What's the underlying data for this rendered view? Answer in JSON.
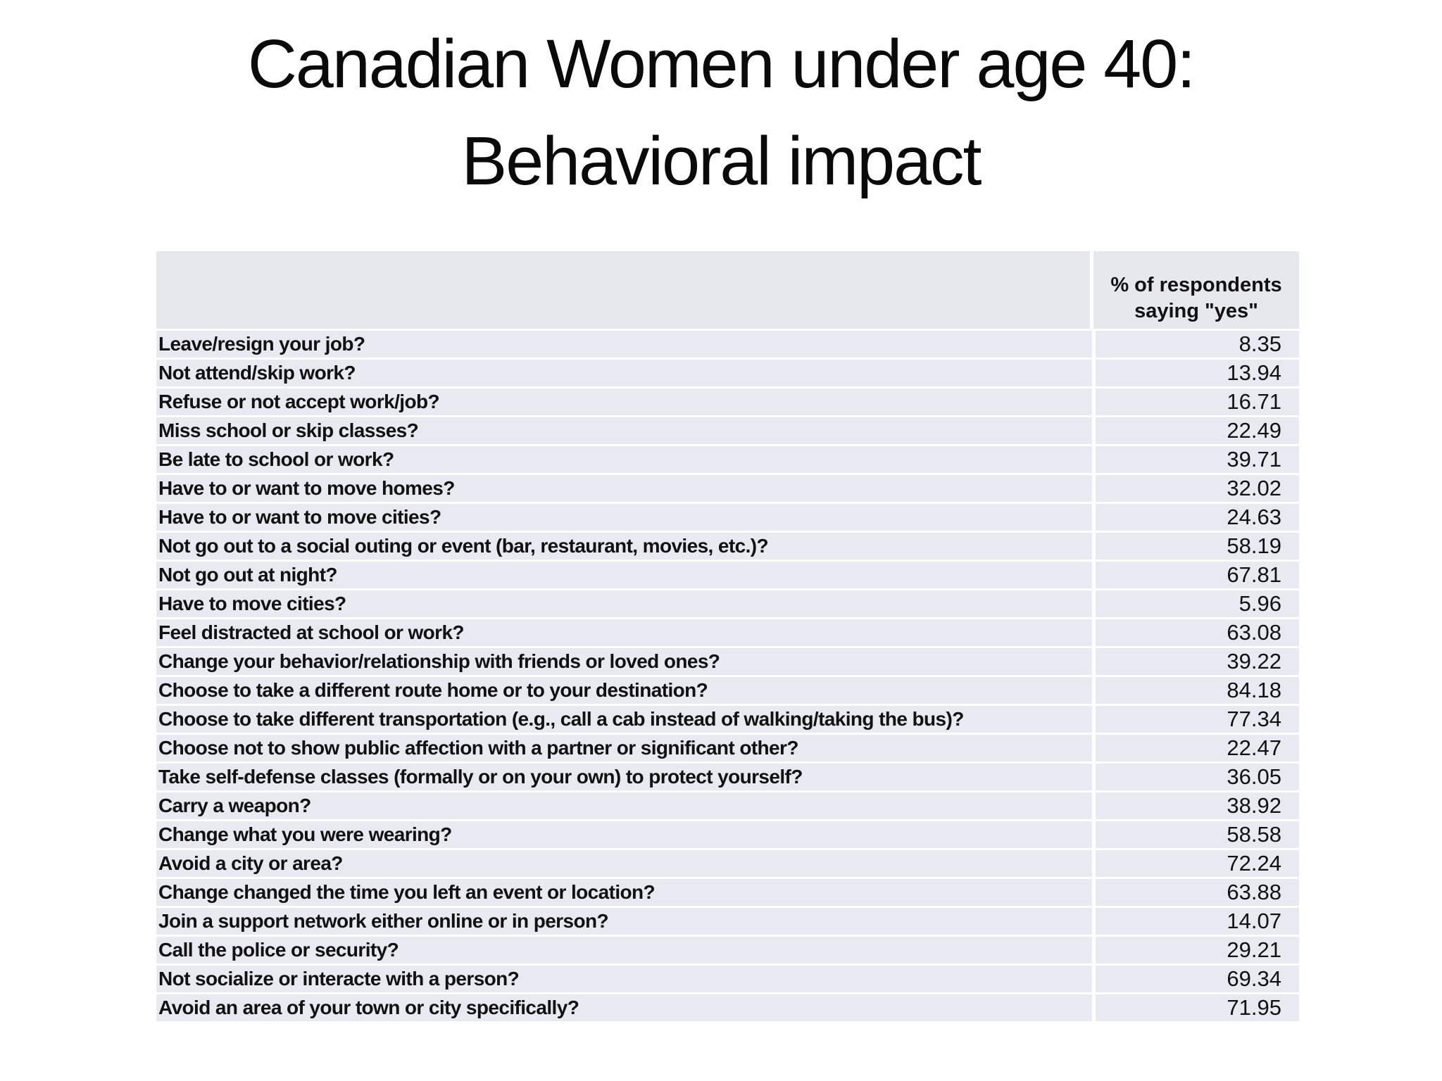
{
  "slide": {
    "title_line1": "Canadian Women under age 40:",
    "title_line2": "Behavioral impact"
  },
  "table": {
    "value_header": "% of respondents saying \"yes\"",
    "rows": [
      {
        "question": "Leave/resign your job?",
        "value": "8.35"
      },
      {
        "question": "Not attend/skip work?",
        "value": "13.94"
      },
      {
        "question": "Refuse or not accept work/job?",
        "value": "16.71"
      },
      {
        "question": "Miss school or skip classes?",
        "value": "22.49"
      },
      {
        "question": "Be late to school or work?",
        "value": "39.71"
      },
      {
        "question": "Have to or want to move homes?",
        "value": "32.02"
      },
      {
        "question": "Have to or want to move cities?",
        "value": "24.63"
      },
      {
        "question": "Not go out to a social outing or event (bar, restaurant, movies, etc.)?",
        "value": "58.19"
      },
      {
        "question": "Not go out at night?",
        "value": "67.81"
      },
      {
        "question": "Have to move cities?",
        "value": "5.96"
      },
      {
        "question": "Feel distracted at school or work?",
        "value": "63.08"
      },
      {
        "question": "Change your behavior/relationship with friends or loved ones?",
        "value": "39.22"
      },
      {
        "question": "Choose to take a different route home or to your destination?",
        "value": "84.18"
      },
      {
        "question": "Choose to take different transportation (e.g., call a cab instead of walking/taking the bus)?",
        "value": "77.34"
      },
      {
        "question": "Choose not to show public affection with a partner or significant other?",
        "value": "22.47"
      },
      {
        "question": "Take self-defense classes (formally or on your own) to protect yourself?",
        "value": "36.05"
      },
      {
        "question": "Carry a weapon?",
        "value": "38.92"
      },
      {
        "question": "Change what you were wearing?",
        "value": "58.58"
      },
      {
        "question": "Avoid a city or area?",
        "value": "72.24"
      },
      {
        "question": "Change changed the time you left an event or location?",
        "value": "63.88"
      },
      {
        "question": "Join a support network either online or in person?",
        "value": "14.07"
      },
      {
        "question": "Call the police or security?",
        "value": "29.21"
      },
      {
        "question": "Not socialize or interacte with a person?",
        "value": "69.34"
      },
      {
        "question": "Avoid an area of your town or city specifically?",
        "value": "71.95"
      }
    ]
  },
  "colors": {
    "background": "#ffffff",
    "header_cell_fill": "#e7e7ee",
    "row_fill": "#e9e9f1",
    "text": "#111111"
  }
}
